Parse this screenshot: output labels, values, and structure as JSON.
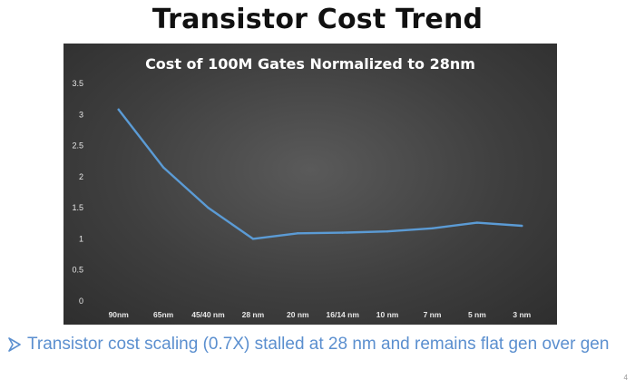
{
  "slide": {
    "title": "Transistor Cost Trend",
    "bullet_text": "Transistor cost scaling (0.7X) stalled at 28 nm and remains flat gen over gen",
    "page_number": "4"
  },
  "colors": {
    "line": "#5b9bd5",
    "bullet_text": "#5b8fcf",
    "chart_background": "#404040",
    "tick_text": "#e8e8e8"
  },
  "icons": {
    "bullet": "arrow-bullet-icon"
  },
  "chart_data": {
    "type": "line",
    "title": "Cost of 100M Gates Normalized to 28nm",
    "xlabel": "",
    "ylabel": "",
    "categories": [
      "90nm",
      "65nm",
      "45/40 nm",
      "28 nm",
      "20 nm",
      "16/14 nm",
      "10 nm",
      "7 nm",
      "5 nm",
      "3 nm"
    ],
    "series": [
      {
        "values": [
          3.08,
          2.15,
          1.5,
          1.0,
          1.09,
          1.1,
          1.12,
          1.17,
          1.26,
          1.21
        ]
      }
    ],
    "yticks": [
      "0",
      "0.5",
      "1",
      "1.5",
      "2",
      "2.5",
      "3",
      "3.5"
    ],
    "ylim": [
      0,
      3.5
    ],
    "grid": false,
    "legend": "none"
  }
}
